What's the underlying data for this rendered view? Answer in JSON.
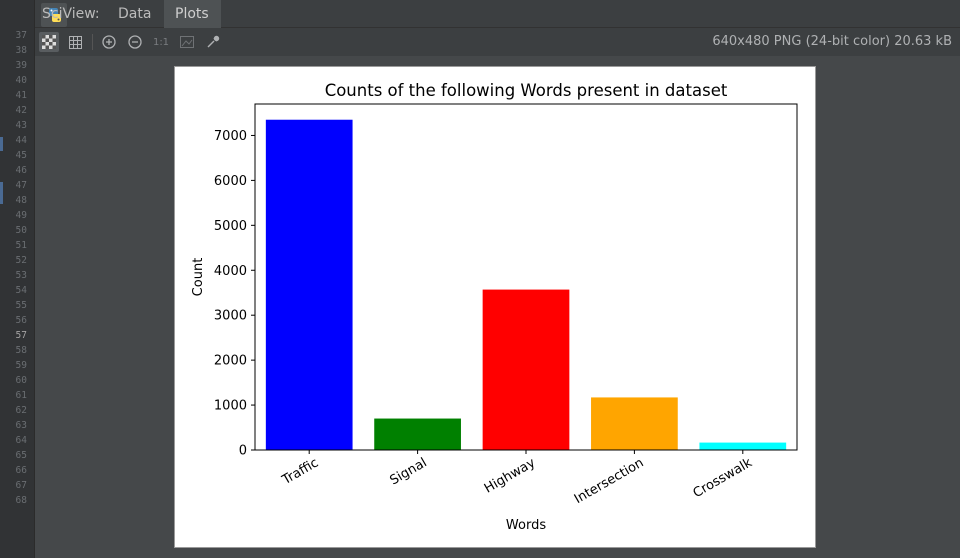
{
  "gutter": {
    "line_numbers": [
      "37",
      "38",
      "39",
      "40",
      "41",
      "42",
      "43",
      "44",
      "45",
      "46",
      "47",
      "48",
      "49",
      "50",
      "51",
      "52",
      "53",
      "54",
      "55",
      "56",
      "57",
      "58",
      "59",
      "60",
      "61",
      "62",
      "63",
      "64",
      "65",
      "66",
      "67",
      "68"
    ],
    "current_line": "57"
  },
  "header": {
    "label": "SciView:",
    "tabs": [
      {
        "label": "Data",
        "active": false
      },
      {
        "label": "Plots",
        "active": true
      }
    ]
  },
  "toolbar": {
    "buttons": [
      {
        "icon": "checkerboard-icon",
        "active": true
      },
      {
        "icon": "grid-icon",
        "active": false
      },
      {
        "icon": "zoom-in-icon",
        "active": false
      },
      {
        "icon": "zoom-out-icon",
        "active": false
      },
      {
        "icon": "actual-size-icon",
        "label": "1:1",
        "active": false
      },
      {
        "icon": "fit-image-icon",
        "active": false
      },
      {
        "icon": "color-picker-icon",
        "active": false
      }
    ],
    "image_info": "640x480 PNG (24-bit color) 20.63 kB"
  },
  "colors": {
    "accent": "#4a6a93"
  },
  "chart_data": {
    "type": "bar",
    "title": "Counts of the following Words present in dataset",
    "xlabel": "Words",
    "ylabel": "Count",
    "categories": [
      "Traffic",
      "Signal",
      "Highway",
      "Intersection",
      "Crosswalk"
    ],
    "values": [
      7350,
      700,
      3570,
      1170,
      165
    ],
    "colors": [
      "#0000ff",
      "#008000",
      "#ff0000",
      "#ffa500",
      "#00ffff"
    ],
    "ylim": [
      0,
      7700
    ],
    "yticks": [
      0,
      1000,
      2000,
      3000,
      4000,
      5000,
      6000,
      7000
    ],
    "grid": false,
    "legend": "none"
  }
}
